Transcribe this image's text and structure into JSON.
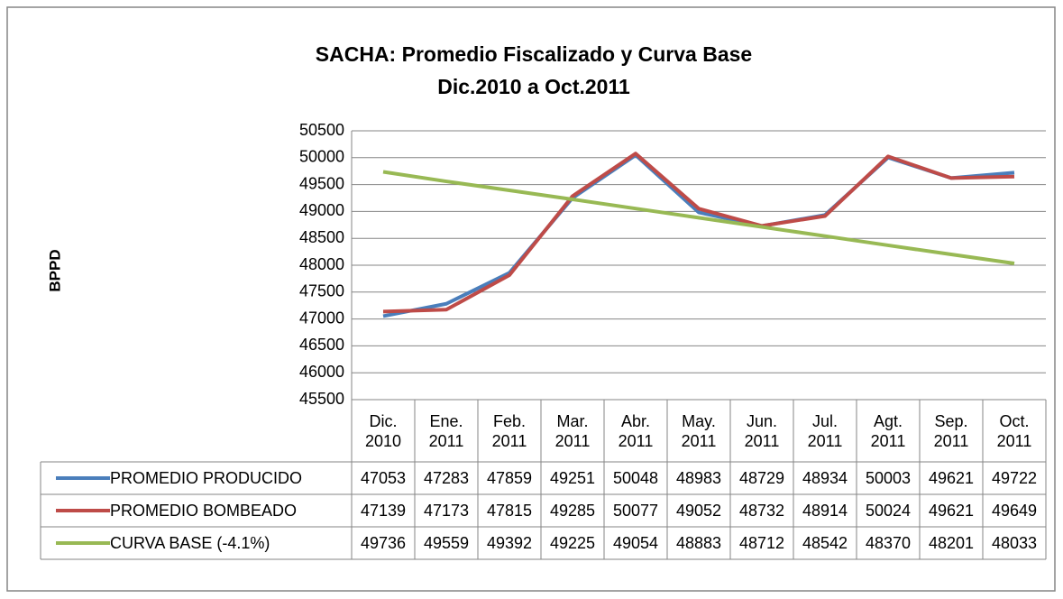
{
  "chart_data": {
    "type": "line",
    "title": "SACHA: Promedio  Fiscalizado  y  Curva Base",
    "subtitle": "Dic.2010  a   Oct.2011",
    "y_label": "BPPD",
    "categories": [
      "Dic. 2010",
      "Ene. 2011",
      "Feb. 2011",
      "Mar. 2011",
      "Abr. 2011",
      "May. 2011",
      "Jun. 2011",
      "Jul. 2011",
      "Agt. 2011",
      "Sep. 2011",
      "Oct. 2011"
    ],
    "series": [
      {
        "name": "PROMEDIO PRODUCIDO",
        "color": "#4a7ebb",
        "values": [
          47053,
          47283,
          47859,
          49251,
          50048,
          48983,
          48729,
          48934,
          50003,
          49621,
          49722
        ]
      },
      {
        "name": "PROMEDIO BOMBEADO",
        "color": "#be4b48",
        "values": [
          47139,
          47173,
          47815,
          49285,
          50077,
          49052,
          48732,
          48914,
          50024,
          49621,
          49649
        ]
      },
      {
        "name": "CURVA BASE (-4.1%)",
        "color": "#98b954",
        "values": [
          49736,
          49559,
          49392,
          49225,
          49054,
          48883,
          48712,
          48542,
          48370,
          48201,
          48033
        ]
      }
    ],
    "ylim": [
      45500,
      50500
    ],
    "yticks": [
      45500,
      46000,
      46500,
      47000,
      47500,
      48000,
      48500,
      49000,
      49500,
      50000,
      50500
    ],
    "grid": true,
    "data_table": true
  }
}
